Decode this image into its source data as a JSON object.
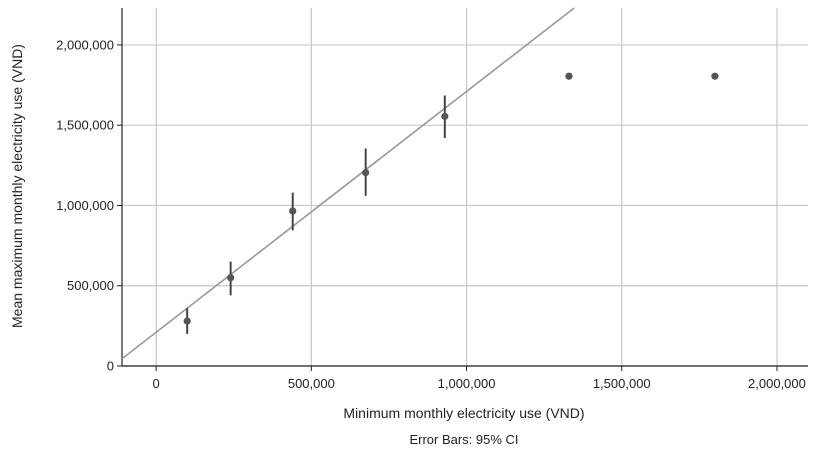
{
  "chart_data": {
    "type": "scatter",
    "title": "",
    "xlabel": "Minimum monthly electricity use (VND)",
    "ylabel": "Mean maximum monthly electricity use (VND)",
    "note": "Error Bars: 95% CI",
    "xlim": [
      -110000,
      2100000
    ],
    "ylim": [
      0,
      2230000
    ],
    "x_ticks": [
      0,
      500000,
      1000000,
      1500000,
      2000000
    ],
    "x_tick_labels": [
      "0",
      "500,000",
      "1,000,000",
      "1,500,000",
      "2,000,000"
    ],
    "y_ticks": [
      0,
      500000,
      1000000,
      1500000,
      2000000
    ],
    "y_tick_labels": [
      "0",
      "500,000",
      "1,000,000",
      "1,500,000",
      "2,000,000"
    ],
    "grid": true,
    "points": [
      {
        "x": 100000,
        "y": 280000,
        "ci_low": 200000,
        "ci_high": 360000
      },
      {
        "x": 240000,
        "y": 550000,
        "ci_low": 440000,
        "ci_high": 650000
      },
      {
        "x": 440000,
        "y": 965000,
        "ci_low": 845000,
        "ci_high": 1080000
      },
      {
        "x": 675000,
        "y": 1205000,
        "ci_low": 1060000,
        "ci_high": 1355000
      },
      {
        "x": 930000,
        "y": 1555000,
        "ci_low": 1420000,
        "ci_high": 1685000
      },
      {
        "x": 1330000,
        "y": 1805000
      },
      {
        "x": 1800000,
        "y": 1805000
      }
    ],
    "fit_line": {
      "intercept": 210000,
      "slope": 1.5
    },
    "colors": {
      "point": "#555555",
      "error_bar": "#444444",
      "fit_line": "#999999",
      "grid": "#c8c8c8",
      "axis": "#222222"
    }
  }
}
